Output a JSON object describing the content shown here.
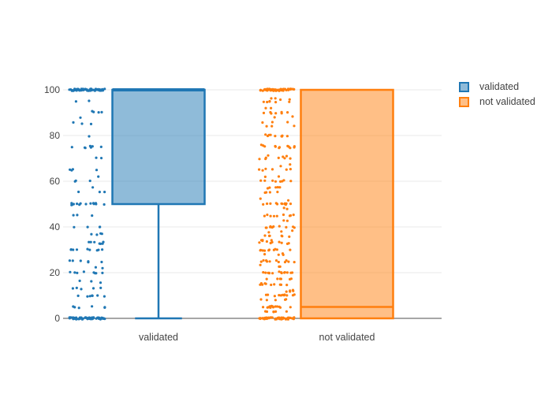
{
  "chart_data": {
    "type": "box",
    "orientation": "vertical",
    "title": "",
    "xlabel": "",
    "ylabel": "",
    "ylim": [
      0,
      100
    ],
    "yticks": [
      0,
      20,
      40,
      60,
      80,
      100
    ],
    "grid": true,
    "legend_position": "top-right",
    "categories": [
      "validated",
      "not validated"
    ],
    "colors": {
      "blue_line": "#1F77B4",
      "blue_fill": "rgba(31,119,180,0.5)",
      "orange_line": "#FF7F0E",
      "orange_fill": "rgba(255,127,14,0.5)",
      "gridline": "#E8E8E8",
      "zeroline": "#888888",
      "text": "#444444"
    },
    "series": [
      {
        "name": "validated",
        "color": "#1F77B4",
        "fill": "rgba(31,119,180,0.5)",
        "box": {
          "min": 0,
          "q1": 50,
          "median": 100,
          "q3": 100,
          "max": 100
        },
        "points_clusters": [
          {
            "v": 100,
            "n": 70
          },
          {
            "v": 95,
            "n": 2
          },
          {
            "v": 91,
            "n": 1
          },
          {
            "v": 90,
            "n": 3
          },
          {
            "v": 88,
            "n": 1
          },
          {
            "v": 86,
            "n": 1
          },
          {
            "v": 85,
            "n": 2
          },
          {
            "v": 80,
            "n": 1
          },
          {
            "v": 75,
            "n": 7
          },
          {
            "v": 70,
            "n": 2
          },
          {
            "v": 65,
            "n": 4
          },
          {
            "v": 62,
            "n": 1
          },
          {
            "v": 60,
            "n": 3
          },
          {
            "v": 57,
            "n": 1
          },
          {
            "v": 55,
            "n": 3
          },
          {
            "v": 50,
            "n": 14
          },
          {
            "v": 45,
            "n": 3
          },
          {
            "v": 40,
            "n": 4
          },
          {
            "v": 37,
            "n": 4
          },
          {
            "v": 33,
            "n": 7
          },
          {
            "v": 30,
            "n": 9
          },
          {
            "v": 25,
            "n": 6
          },
          {
            "v": 22,
            "n": 2
          },
          {
            "v": 20,
            "n": 8
          },
          {
            "v": 16,
            "n": 3
          },
          {
            "v": 13,
            "n": 5
          },
          {
            "v": 10,
            "n": 7
          },
          {
            "v": 5,
            "n": 6
          },
          {
            "v": 0,
            "n": 55
          }
        ]
      },
      {
        "name": "not validated",
        "color": "#FF7F0E",
        "fill": "rgba(255,127,14,0.5)",
        "box": {
          "min": 0,
          "q1": 0,
          "median": 5,
          "q3": 100,
          "max": 100
        },
        "points_clusters": [
          {
            "v": 100,
            "n": 70
          },
          {
            "v": 96,
            "n": 4
          },
          {
            "v": 95,
            "n": 6
          },
          {
            "v": 92,
            "n": 2
          },
          {
            "v": 90,
            "n": 7
          },
          {
            "v": 88,
            "n": 2
          },
          {
            "v": 86,
            "n": 3
          },
          {
            "v": 84,
            "n": 3
          },
          {
            "v": 80,
            "n": 9
          },
          {
            "v": 76,
            "n": 2
          },
          {
            "v": 75,
            "n": 10
          },
          {
            "v": 71,
            "n": 3
          },
          {
            "v": 70,
            "n": 6
          },
          {
            "v": 67,
            "n": 2
          },
          {
            "v": 65,
            "n": 6
          },
          {
            "v": 62,
            "n": 2
          },
          {
            "v": 60,
            "n": 8
          },
          {
            "v": 57,
            "n": 5
          },
          {
            "v": 55,
            "n": 4
          },
          {
            "v": 52,
            "n": 2
          },
          {
            "v": 50,
            "n": 12
          },
          {
            "v": 48,
            "n": 2
          },
          {
            "v": 45,
            "n": 9
          },
          {
            "v": 43,
            "n": 2
          },
          {
            "v": 40,
            "n": 10
          },
          {
            "v": 38,
            "n": 3
          },
          {
            "v": 36,
            "n": 6
          },
          {
            "v": 34,
            "n": 5
          },
          {
            "v": 33,
            "n": 7
          },
          {
            "v": 30,
            "n": 10
          },
          {
            "v": 28,
            "n": 4
          },
          {
            "v": 25,
            "n": 11
          },
          {
            "v": 23,
            "n": 3
          },
          {
            "v": 20,
            "n": 14
          },
          {
            "v": 17,
            "n": 6
          },
          {
            "v": 15,
            "n": 10
          },
          {
            "v": 12,
            "n": 5
          },
          {
            "v": 10,
            "n": 11
          },
          {
            "v": 8,
            "n": 5
          },
          {
            "v": 5,
            "n": 14
          },
          {
            "v": 3,
            "n": 6
          },
          {
            "v": 0,
            "n": 55
          }
        ]
      }
    ]
  }
}
